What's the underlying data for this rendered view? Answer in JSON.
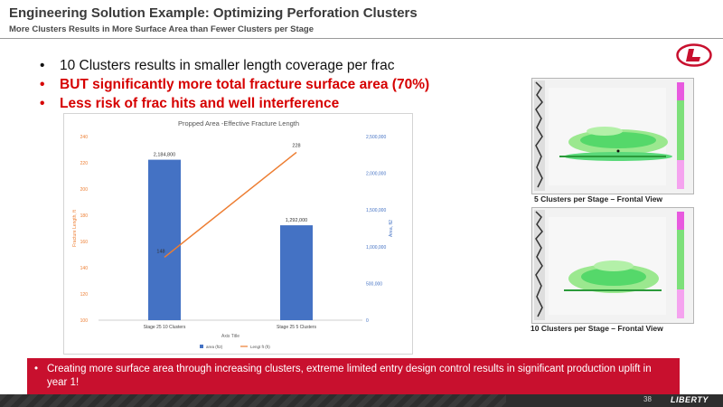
{
  "header": {
    "title": "Engineering Solution Example: Optimizing Perforation Clusters",
    "subtitle": "More Clusters Results in More Surface Area than Fewer Clusters per Stage"
  },
  "bullets": [
    {
      "text": "10 Clusters results in smaller length coverage per frac",
      "style": "black"
    },
    {
      "text": "BUT significantly more total fracture surface area (70%)",
      "style": "red"
    },
    {
      "text": "Less risk of frac hits and well interference",
      "style": "red"
    }
  ],
  "chart_data": {
    "type": "bar",
    "title": "Propped Area -Effective Fracture Length",
    "categories": [
      "Stage 25 10 Clusters",
      "Stage 25 5 Clusters"
    ],
    "xlabel": "Axis Title",
    "series": [
      {
        "name": "area (ft2)",
        "type": "bar",
        "axis": "right",
        "values": [
          2184800,
          1292000
        ],
        "labels": [
          "2,184,800",
          "1,292,000"
        ],
        "color": "#4472c4"
      },
      {
        "name": "Lengt ft (ft)",
        "type": "line",
        "axis": "left",
        "values": [
          148,
          228
        ],
        "labels": [
          "148",
          "228"
        ],
        "color": "#ed7d31"
      }
    ],
    "left_axis": {
      "label": "Fracture Length, ft",
      "min": 100,
      "max": 240,
      "ticks": [
        100,
        120,
        140,
        160,
        180,
        200,
        220,
        240
      ]
    },
    "right_axis": {
      "label": "Area, ft2",
      "min": 0,
      "max": 2500000,
      "ticks": [
        0,
        500000,
        1000000,
        1500000,
        2000000,
        2500000
      ],
      "tick_labels": [
        "0",
        "500,000",
        "1,000,000",
        "1,500,000",
        "2,000,000",
        "2,500,000"
      ]
    },
    "legend_position": "bottom",
    "grid": false
  },
  "images": {
    "sim1_caption": "5 Clusters per Stage – Frontal View",
    "sim2_caption": "10 Clusters per Stage – Frontal View"
  },
  "banner": {
    "bullet": "•",
    "text": "Creating more surface area through increasing clusters, extreme limited entry design control results in significant production uplift in year 1!"
  },
  "footer": {
    "page": "38",
    "brand": "LIBERTY"
  },
  "colors": {
    "accent_red": "#c8102e",
    "bullet_red": "#d60000",
    "bar_blue": "#4472c4",
    "line_orange": "#ed7d31"
  }
}
